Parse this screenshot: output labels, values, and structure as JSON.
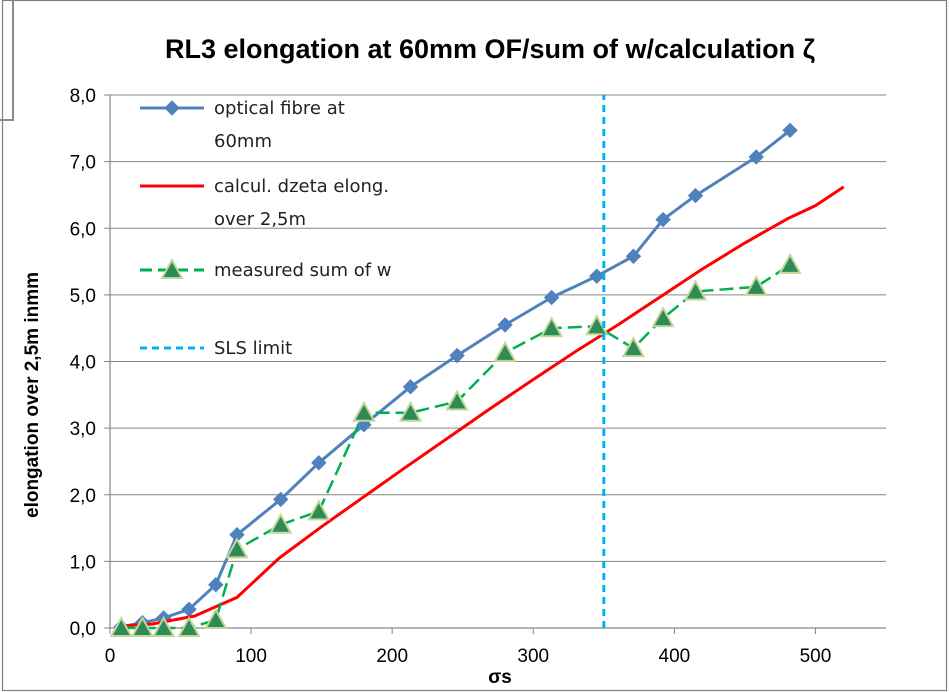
{
  "chart_data": {
    "type": "line",
    "title": "RL3 elongation at 60mm OF/sum of  w/calculation ζ",
    "xlabel": "σs",
    "ylabel": "elongation over 2,5m inmm",
    "xlim": [
      0,
      550
    ],
    "ylim": [
      0,
      8
    ],
    "x_ticks": [
      "0",
      "100",
      "200",
      "300",
      "400",
      "500"
    ],
    "y_ticks": [
      "0,0",
      "1,0",
      "2,0",
      "3,0",
      "4,0",
      "5,0",
      "6,0",
      "7,0",
      "8,0"
    ],
    "grid": "horizontal",
    "legend_position": "top-left",
    "series": [
      {
        "name": "optical fibre at 60mm",
        "name_lines": [
          "optical fibre at",
          "60mm"
        ],
        "color": "#4f81bd",
        "marker": "diamond",
        "dash": "solid",
        "points": [
          [
            8,
            0.02
          ],
          [
            23,
            0.08
          ],
          [
            38,
            0.15
          ],
          [
            56,
            0.28
          ],
          [
            75,
            0.65
          ],
          [
            90,
            1.4
          ],
          [
            121,
            1.93
          ],
          [
            148,
            2.48
          ],
          [
            180,
            3.05
          ],
          [
            213,
            3.62
          ],
          [
            246,
            4.09
          ],
          [
            280,
            4.55
          ],
          [
            313,
            4.96
          ],
          [
            345,
            5.28
          ],
          [
            371,
            5.58
          ],
          [
            392,
            6.13
          ],
          [
            415,
            6.49
          ],
          [
            458,
            7.07
          ],
          [
            482,
            7.47
          ]
        ]
      },
      {
        "name": "calcul. dzeta elong. over 2,5m",
        "name_lines": [
          "calcul. dzeta elong.",
          "over 2,5m"
        ],
        "color": "#ff0000",
        "marker": "none",
        "dash": "solid",
        "points": [
          [
            8,
            0.03
          ],
          [
            30,
            0.06
          ],
          [
            60,
            0.18
          ],
          [
            90,
            0.46
          ],
          [
            120,
            1.05
          ],
          [
            150,
            1.52
          ],
          [
            180,
            1.97
          ],
          [
            210,
            2.42
          ],
          [
            240,
            2.86
          ],
          [
            270,
            3.3
          ],
          [
            300,
            3.73
          ],
          [
            330,
            4.15
          ],
          [
            360,
            4.55
          ],
          [
            390,
            4.97
          ],
          [
            420,
            5.39
          ],
          [
            450,
            5.78
          ],
          [
            480,
            6.14
          ],
          [
            500,
            6.34
          ],
          [
            520,
            6.62
          ]
        ]
      },
      {
        "name": "measured sum of w",
        "name_lines": [
          "measured sum of w"
        ],
        "color": "#00b050",
        "marker_fill": "#2e8b57",
        "marker_edge": "#c4d79b",
        "marker": "triangle",
        "dash": "dashed",
        "points": [
          [
            8,
            0.0
          ],
          [
            23,
            0.0
          ],
          [
            38,
            0.0
          ],
          [
            56,
            0.0
          ],
          [
            75,
            0.12
          ],
          [
            90,
            1.18
          ],
          [
            121,
            1.55
          ],
          [
            148,
            1.75
          ],
          [
            180,
            3.23
          ],
          [
            213,
            3.23
          ],
          [
            246,
            3.4
          ],
          [
            280,
            4.13
          ],
          [
            313,
            4.5
          ],
          [
            345,
            4.53
          ],
          [
            371,
            4.2
          ],
          [
            392,
            4.65
          ],
          [
            415,
            5.05
          ],
          [
            458,
            5.12
          ],
          [
            482,
            5.45
          ]
        ]
      },
      {
        "name": "SLS limit",
        "name_lines": [
          "SLS limit"
        ],
        "color": "#00b0f0",
        "marker": "none",
        "dash": "dashed",
        "points": [
          [
            350,
            0
          ],
          [
            350,
            8
          ]
        ]
      }
    ]
  }
}
